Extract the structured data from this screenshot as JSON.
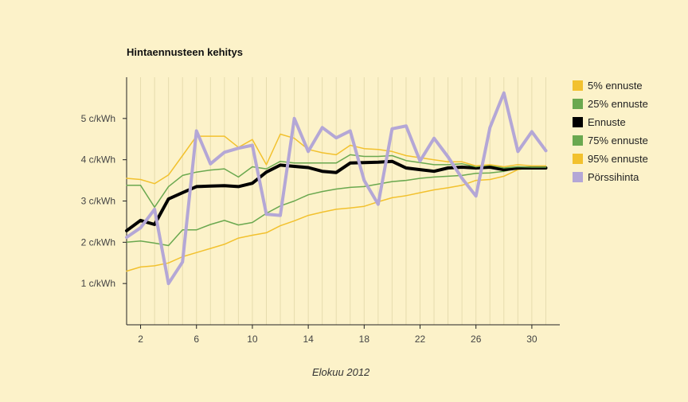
{
  "chart_data": {
    "type": "line",
    "title": "Hintaennusteen kehitys",
    "xlabel": "Elokuu 2012",
    "ylabel": "",
    "x": [
      1,
      2,
      3,
      4,
      5,
      6,
      7,
      8,
      9,
      10,
      11,
      12,
      13,
      14,
      15,
      16,
      17,
      18,
      19,
      20,
      21,
      22,
      23,
      24,
      25,
      26,
      27,
      28,
      29,
      30,
      31
    ],
    "xlim": [
      1,
      32
    ],
    "ylim": [
      0,
      6
    ],
    "xticks": [
      2,
      6,
      10,
      14,
      18,
      22,
      26,
      30
    ],
    "xtick_labels": [
      "2",
      "6",
      "10",
      "14",
      "18",
      "22",
      "26",
      "30"
    ],
    "yticks": [
      1,
      2,
      3,
      4,
      5
    ],
    "ytick_labels": [
      "1 c/kWh",
      "2 c/kWh",
      "3 c/kWh",
      "4 c/kWh",
      "5 c/kWh"
    ],
    "grid": "vertical",
    "legend_position": "right",
    "series": [
      {
        "name": "5% ennuste",
        "color": "#f2c12e",
        "width": 1.5,
        "values": [
          1.3,
          1.4,
          1.43,
          1.5,
          1.65,
          1.75,
          1.85,
          1.95,
          2.1,
          2.17,
          2.23,
          2.4,
          2.52,
          2.65,
          2.73,
          2.8,
          2.83,
          2.87,
          2.98,
          3.08,
          3.13,
          3.2,
          3.27,
          3.32,
          3.38,
          3.5,
          3.52,
          3.6,
          3.76,
          3.82,
          3.82
        ]
      },
      {
        "name": "25% ennuste",
        "color": "#6aa84f",
        "width": 1.5,
        "values": [
          2.0,
          2.03,
          1.98,
          1.92,
          2.3,
          2.3,
          2.43,
          2.53,
          2.42,
          2.48,
          2.7,
          2.88,
          3.0,
          3.15,
          3.23,
          3.29,
          3.33,
          3.35,
          3.41,
          3.47,
          3.5,
          3.55,
          3.58,
          3.6,
          3.62,
          3.67,
          3.68,
          3.72,
          3.8,
          3.82,
          3.82
        ]
      },
      {
        "name": "Ennuste",
        "color": "#000000",
        "width": 4,
        "values": [
          2.28,
          2.53,
          2.43,
          3.05,
          3.2,
          3.35,
          3.36,
          3.37,
          3.35,
          3.43,
          3.7,
          3.87,
          3.84,
          3.81,
          3.72,
          3.69,
          3.92,
          3.93,
          3.94,
          3.96,
          3.8,
          3.76,
          3.72,
          3.8,
          3.82,
          3.8,
          3.82,
          3.76,
          3.8,
          3.8,
          3.8
        ]
      },
      {
        "name": "75% ennuste",
        "color": "#6aa84f",
        "width": 1.5,
        "values": [
          3.38,
          3.38,
          2.85,
          3.35,
          3.62,
          3.7,
          3.75,
          3.78,
          3.58,
          3.83,
          3.78,
          3.96,
          3.92,
          3.92,
          3.92,
          3.92,
          4.12,
          4.08,
          4.08,
          4.1,
          3.98,
          3.93,
          3.88,
          3.88,
          3.9,
          3.83,
          3.87,
          3.8,
          3.83,
          3.82,
          3.82
        ]
      },
      {
        "name": "95% ennuste",
        "color": "#f2c12e",
        "width": 1.5,
        "values": [
          3.55,
          3.52,
          3.42,
          3.63,
          4.1,
          4.57,
          4.57,
          4.57,
          4.3,
          4.49,
          3.88,
          4.62,
          4.52,
          4.25,
          4.17,
          4.12,
          4.35,
          4.27,
          4.25,
          4.2,
          4.1,
          4.05,
          4.0,
          3.95,
          3.95,
          3.85,
          3.88,
          3.83,
          3.88,
          3.85,
          3.85
        ]
      },
      {
        "name": "Pörssihinta",
        "color": "#b4a7d6",
        "width": 4,
        "values": [
          2.12,
          2.35,
          2.8,
          1.0,
          1.52,
          4.7,
          3.9,
          4.18,
          4.28,
          4.35,
          2.68,
          2.65,
          5.0,
          4.2,
          4.78,
          4.53,
          4.7,
          3.5,
          2.92,
          4.75,
          4.82,
          3.97,
          4.52,
          4.07,
          3.55,
          3.12,
          4.78,
          5.62,
          4.2,
          4.68,
          4.22
        ]
      }
    ]
  }
}
